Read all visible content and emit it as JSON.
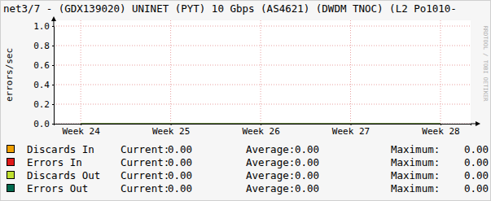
{
  "chart_data": {
    "type": "line",
    "title": "net3/7 - (GDX139020) UNINET (PYT) 10 Gbps (AS4621) (DWDM TNOC) (L2 Po1010-",
    "y_label": "errors/sec",
    "watermark": "RRDTOOL / TOBI OETIKER",
    "x": [
      24,
      25,
      26,
      27,
      28
    ],
    "xlim": [
      23.7,
      28.335
    ],
    "xticks": [
      {
        "value": 24,
        "label": "Week 24"
      },
      {
        "value": 25,
        "label": "Week 25"
      },
      {
        "value": 26,
        "label": "Week 26"
      },
      {
        "value": 27,
        "label": "Week 27"
      },
      {
        "value": 28,
        "label": "Week 28"
      }
    ],
    "ylim": [
      0,
      1
    ],
    "yticks": [
      {
        "value": 0,
        "label": "0.0"
      },
      {
        "value": 0.2,
        "label": "0.2"
      },
      {
        "value": 0.4,
        "label": "0.4"
      },
      {
        "value": 0.6,
        "label": "0.6"
      },
      {
        "value": 0.8,
        "label": "0.8"
      },
      {
        "value": 1,
        "label": "1.0"
      }
    ],
    "grid": true,
    "legend": "bottom",
    "stat_labels": [
      "Current:",
      "Average:",
      "Maximum:"
    ],
    "series": [
      {
        "name": "Discards In",
        "color": "#f0a000",
        "values": [
          0,
          0,
          0,
          0,
          0
        ],
        "stats": [
          {
            "value": 0,
            "label": "0.00"
          },
          {
            "value": 0,
            "label": "0.00"
          },
          {
            "value": 0,
            "label": "0.00"
          }
        ]
      },
      {
        "name": "Errors In",
        "color": "#e01818",
        "values": [
          0,
          0,
          0,
          0,
          0
        ],
        "stats": [
          {
            "value": 0,
            "label": "0.00"
          },
          {
            "value": 0,
            "label": "0.00"
          },
          {
            "value": 0,
            "label": "0.00"
          }
        ]
      },
      {
        "name": "Discards Out",
        "color": "#c0e030",
        "values": [
          0,
          0,
          0,
          0,
          0
        ],
        "stats": [
          {
            "value": 0,
            "label": "0.00"
          },
          {
            "value": 0,
            "label": "0.00"
          },
          {
            "value": 0,
            "label": "0.00"
          }
        ]
      },
      {
        "name": "Errors Out",
        "color": "#006a4e",
        "values": [
          0,
          0,
          0,
          0,
          0
        ],
        "stats": [
          {
            "value": 0,
            "label": "0.00"
          },
          {
            "value": 0,
            "label": "0.00"
          },
          {
            "value": 0,
            "label": "0.00"
          }
        ]
      }
    ]
  }
}
